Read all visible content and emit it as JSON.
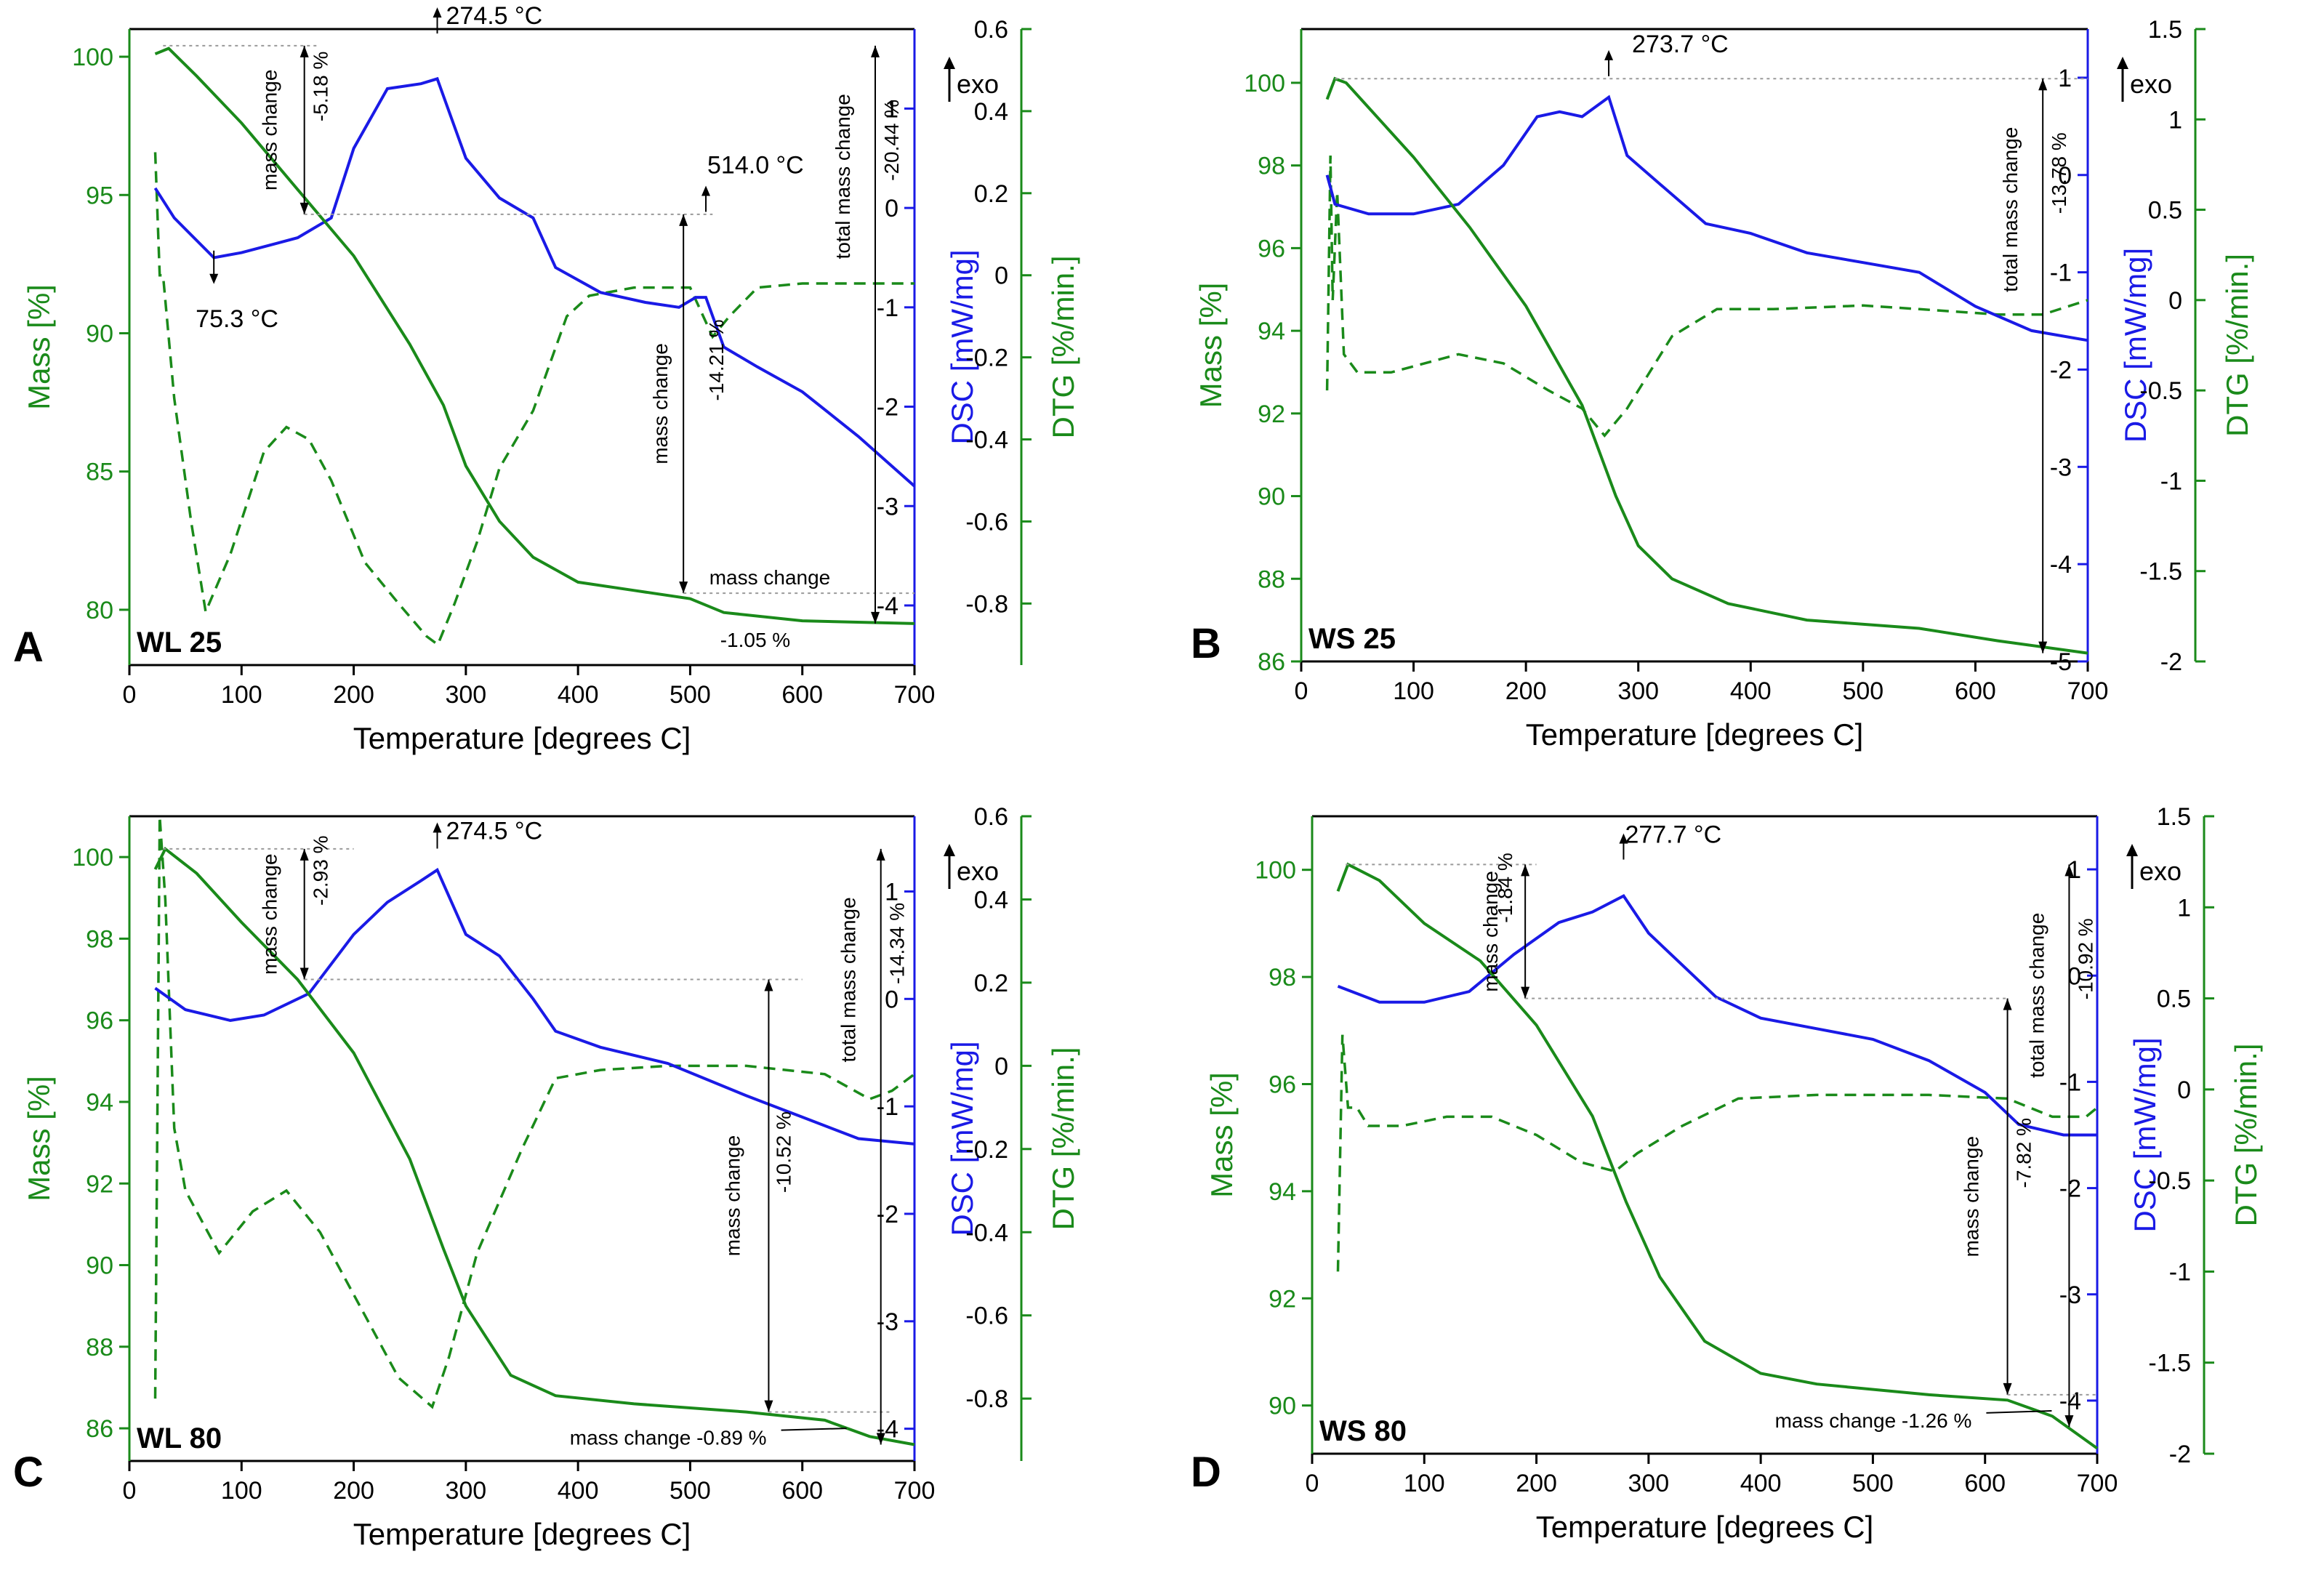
{
  "figure": {
    "type": "TGA/DSC/DTG thermal analysis",
    "panels_count": 4
  },
  "colors": {
    "mass": "#1a8a1a",
    "dsc": "#1a1ae6",
    "dtg": "#1a8a1a",
    "axis": "#000000",
    "guide": "#999999"
  },
  "common": {
    "exo": "exo",
    "xlabel": "Temperature [degrees C]",
    "y_mass_label": "Mass [%]",
    "y_dsc_label": "DSC [mW/mg]",
    "y_dtg_label": "DTG [%/min.]"
  },
  "chart_data": [
    {
      "panel": "A",
      "sample": "WL 25",
      "type": "line",
      "xlim": [
        0,
        700
      ],
      "xticks": [
        0,
        100,
        200,
        300,
        400,
        500,
        600,
        700
      ],
      "mass_lim": [
        78,
        101
      ],
      "mass_ticks": [
        80,
        85,
        90,
        95,
        100
      ],
      "dsc_lim": [
        -4.6,
        1.8
      ],
      "dsc_ticks": [
        -4,
        -3,
        -2,
        -1,
        0,
        1
      ],
      "dtg_lim": [
        -0.95,
        0.6
      ],
      "dtg_ticks": [
        -0.8,
        -0.6,
        -0.4,
        -0.2,
        0,
        0.2,
        0.4,
        0.6
      ],
      "mass_curve": [
        [
          23,
          100.1
        ],
        [
          35,
          100.3
        ],
        [
          60,
          99.3
        ],
        [
          100,
          97.6
        ],
        [
          150,
          95.2
        ],
        [
          200,
          92.8
        ],
        [
          250,
          89.6
        ],
        [
          280,
          87.4
        ],
        [
          300,
          85.2
        ],
        [
          330,
          83.2
        ],
        [
          360,
          81.9
        ],
        [
          400,
          81.0
        ],
        [
          450,
          80.7
        ],
        [
          500,
          80.4
        ],
        [
          530,
          79.9
        ],
        [
          600,
          79.6
        ],
        [
          700,
          79.5
        ]
      ],
      "dsc_curve": [
        [
          23,
          0.2
        ],
        [
          40,
          -0.1
        ],
        [
          75.3,
          -0.5
        ],
        [
          100,
          -0.45
        ],
        [
          150,
          -0.3
        ],
        [
          180,
          -0.1
        ],
        [
          200,
          0.6
        ],
        [
          230,
          1.2
        ],
        [
          260,
          1.25
        ],
        [
          274.5,
          1.3
        ],
        [
          300,
          0.5
        ],
        [
          330,
          0.1
        ],
        [
          360,
          -0.1
        ],
        [
          380,
          -0.6
        ],
        [
          420,
          -0.85
        ],
        [
          460,
          -0.95
        ],
        [
          490,
          -1.0
        ],
        [
          505,
          -0.9
        ],
        [
          514.0,
          -0.9
        ],
        [
          530,
          -1.4
        ],
        [
          560,
          -1.6
        ],
        [
          600,
          -1.85
        ],
        [
          650,
          -2.3
        ],
        [
          700,
          -2.8
        ]
      ],
      "dtg_curve": [
        [
          23,
          0.3
        ],
        [
          27,
          0.0
        ],
        [
          30,
          0.0
        ],
        [
          40,
          -0.3
        ],
        [
          55,
          -0.6
        ],
        [
          68,
          -0.82
        ],
        [
          90,
          -0.68
        ],
        [
          120,
          -0.43
        ],
        [
          140,
          -0.37
        ],
        [
          160,
          -0.4
        ],
        [
          180,
          -0.5
        ],
        [
          210,
          -0.7
        ],
        [
          240,
          -0.8
        ],
        [
          265,
          -0.88
        ],
        [
          275,
          -0.9
        ],
        [
          290,
          -0.8
        ],
        [
          310,
          -0.65
        ],
        [
          330,
          -0.47
        ],
        [
          360,
          -0.33
        ],
        [
          390,
          -0.1
        ],
        [
          410,
          -0.05
        ],
        [
          450,
          -0.03
        ],
        [
          500,
          -0.03
        ],
        [
          520,
          -0.15
        ],
        [
          535,
          -0.1
        ],
        [
          560,
          -0.03
        ],
        [
          600,
          -0.02
        ],
        [
          700,
          -0.02
        ]
      ],
      "annotations": {
        "peak_labels": [
          "274.5 °C",
          "514.0 °C",
          "75.3 °C"
        ],
        "mass_change_labels": [
          "mass change",
          "mass change",
          "mass change"
        ],
        "mass_change_values": [
          "-5.18 %",
          "-14.21 %",
          "-1.05 %"
        ],
        "total_label": "total mass change",
        "total_value": "-20.44 %"
      }
    },
    {
      "panel": "B",
      "sample": "WS 25",
      "type": "line",
      "xlim": [
        0,
        700
      ],
      "xticks": [
        0,
        100,
        200,
        300,
        400,
        500,
        600,
        700
      ],
      "mass_lim": [
        86,
        101.3
      ],
      "mass_ticks": [
        86,
        88,
        90,
        92,
        94,
        96,
        98,
        100
      ],
      "dsc_lim": [
        -5,
        1.5
      ],
      "dsc_ticks": [
        -5,
        -4,
        -3,
        -2,
        -1,
        0,
        1
      ],
      "dtg_lim": [
        -2,
        1.5
      ],
      "dtg_ticks": [
        -2,
        -1.5,
        -1,
        -0.5,
        0,
        0.5,
        1,
        1.5
      ],
      "mass_curve": [
        [
          23,
          99.6
        ],
        [
          30,
          100.1
        ],
        [
          40,
          100.0
        ],
        [
          60,
          99.4
        ],
        [
          100,
          98.2
        ],
        [
          150,
          96.5
        ],
        [
          200,
          94.6
        ],
        [
          250,
          92.2
        ],
        [
          280,
          90.0
        ],
        [
          300,
          88.8
        ],
        [
          330,
          88.0
        ],
        [
          380,
          87.4
        ],
        [
          450,
          87.0
        ],
        [
          550,
          86.8
        ],
        [
          620,
          86.5
        ],
        [
          700,
          86.2
        ]
      ],
      "dsc_curve": [
        [
          23,
          0.0
        ],
        [
          30,
          -0.3
        ],
        [
          60,
          -0.4
        ],
        [
          100,
          -0.4
        ],
        [
          140,
          -0.3
        ],
        [
          180,
          0.1
        ],
        [
          210,
          0.6
        ],
        [
          230,
          0.65
        ],
        [
          250,
          0.6
        ],
        [
          273.7,
          0.8
        ],
        [
          290,
          0.2
        ],
        [
          320,
          -0.1
        ],
        [
          360,
          -0.5
        ],
        [
          400,
          -0.6
        ],
        [
          450,
          -0.8
        ],
        [
          500,
          -0.9
        ],
        [
          550,
          -1.0
        ],
        [
          600,
          -1.35
        ],
        [
          650,
          -1.6
        ],
        [
          700,
          -1.7
        ]
      ],
      "dtg_curve": [
        [
          23,
          -0.5
        ],
        [
          26,
          0.8
        ],
        [
          28,
          0.0
        ],
        [
          32,
          0.6
        ],
        [
          38,
          -0.3
        ],
        [
          50,
          -0.4
        ],
        [
          80,
          -0.4
        ],
        [
          140,
          -0.3
        ],
        [
          180,
          -0.35
        ],
        [
          220,
          -0.5
        ],
        [
          250,
          -0.6
        ],
        [
          270,
          -0.75
        ],
        [
          290,
          -0.6
        ],
        [
          330,
          -0.2
        ],
        [
          370,
          -0.05
        ],
        [
          420,
          -0.05
        ],
        [
          500,
          -0.03
        ],
        [
          550,
          -0.05
        ],
        [
          620,
          -0.08
        ],
        [
          660,
          -0.08
        ],
        [
          700,
          0.0
        ]
      ],
      "annotations": {
        "peak_labels": [
          "273.7 °C"
        ],
        "mass_change_labels": [],
        "mass_change_values": [],
        "total_label": "total mass change",
        "total_value": "-13.78 %"
      }
    },
    {
      "panel": "C",
      "sample": "WL 80",
      "type": "line",
      "xlim": [
        0,
        700
      ],
      "xticks": [
        0,
        100,
        200,
        300,
        400,
        500,
        600,
        700
      ],
      "mass_lim": [
        85.2,
        101
      ],
      "mass_ticks": [
        86,
        88,
        90,
        92,
        94,
        96,
        98,
        100
      ],
      "dsc_lim": [
        -4.3,
        1.7
      ],
      "dsc_ticks": [
        -4,
        -3,
        -2,
        -1,
        0,
        1
      ],
      "dtg_lim": [
        -0.95,
        0.6
      ],
      "dtg_ticks": [
        -0.8,
        -0.6,
        -0.4,
        -0.2,
        0,
        0.2,
        0.4,
        0.6
      ],
      "mass_curve": [
        [
          23,
          99.7
        ],
        [
          32,
          100.2
        ],
        [
          60,
          99.6
        ],
        [
          100,
          98.4
        ],
        [
          150,
          97.0
        ],
        [
          200,
          95.2
        ],
        [
          250,
          92.6
        ],
        [
          280,
          90.4
        ],
        [
          300,
          89.0
        ],
        [
          340,
          87.3
        ],
        [
          380,
          86.8
        ],
        [
          450,
          86.6
        ],
        [
          550,
          86.4
        ],
        [
          620,
          86.2
        ],
        [
          660,
          85.8
        ],
        [
          700,
          85.6
        ]
      ],
      "dsc_curve": [
        [
          23,
          0.1
        ],
        [
          50,
          -0.1
        ],
        [
          90,
          -0.2
        ],
        [
          120,
          -0.15
        ],
        [
          160,
          0.05
        ],
        [
          200,
          0.6
        ],
        [
          230,
          0.9
        ],
        [
          260,
          1.1
        ],
        [
          274.5,
          1.2
        ],
        [
          300,
          0.6
        ],
        [
          330,
          0.4
        ],
        [
          360,
          0.0
        ],
        [
          380,
          -0.3
        ],
        [
          420,
          -0.45
        ],
        [
          480,
          -0.6
        ],
        [
          550,
          -0.9
        ],
        [
          600,
          -1.1
        ],
        [
          650,
          -1.3
        ],
        [
          700,
          -1.35
        ]
      ],
      "dtg_curve": [
        [
          23,
          -0.8
        ],
        [
          27,
          0.6
        ],
        [
          32,
          0.4
        ],
        [
          40,
          -0.15
        ],
        [
          50,
          -0.3
        ],
        [
          80,
          -0.45
        ],
        [
          110,
          -0.35
        ],
        [
          140,
          -0.3
        ],
        [
          170,
          -0.4
        ],
        [
          200,
          -0.55
        ],
        [
          240,
          -0.75
        ],
        [
          270,
          -0.82
        ],
        [
          285,
          -0.7
        ],
        [
          310,
          -0.45
        ],
        [
          350,
          -0.2
        ],
        [
          380,
          -0.03
        ],
        [
          420,
          -0.01
        ],
        [
          480,
          0.0
        ],
        [
          550,
          0.0
        ],
        [
          620,
          -0.02
        ],
        [
          660,
          -0.08
        ],
        [
          680,
          -0.06
        ],
        [
          700,
          -0.02
        ]
      ],
      "annotations": {
        "peak_labels": [
          "274.5 °C"
        ],
        "mass_change_labels": [
          "mass change",
          "mass change",
          "mass change -0.89 %"
        ],
        "mass_change_values": [
          "-2.93 %",
          "-10.52 %"
        ],
        "total_label": "total mass change",
        "total_value": "-14.34 %"
      }
    },
    {
      "panel": "D",
      "sample": "WS 80",
      "type": "line",
      "xlim": [
        0,
        700
      ],
      "xticks": [
        0,
        100,
        200,
        300,
        400,
        500,
        600,
        700
      ],
      "mass_lim": [
        89.1,
        101
      ],
      "mass_ticks": [
        90,
        92,
        94,
        96,
        98,
        100
      ],
      "dsc_lim": [
        -4.5,
        1.5
      ],
      "dsc_ticks": [
        -4,
        -3,
        -2,
        -1,
        0,
        1
      ],
      "dtg_lim": [
        -2,
        1.5
      ],
      "dtg_ticks": [
        -2,
        -1.5,
        -1,
        -0.5,
        0,
        0.5,
        1,
        1.5
      ],
      "mass_curve": [
        [
          23,
          99.6
        ],
        [
          32,
          100.1
        ],
        [
          60,
          99.8
        ],
        [
          100,
          99.0
        ],
        [
          150,
          98.3
        ],
        [
          200,
          97.1
        ],
        [
          250,
          95.4
        ],
        [
          280,
          93.8
        ],
        [
          310,
          92.4
        ],
        [
          350,
          91.2
        ],
        [
          400,
          90.6
        ],
        [
          450,
          90.4
        ],
        [
          550,
          90.2
        ],
        [
          620,
          90.1
        ],
        [
          660,
          89.8
        ],
        [
          700,
          89.2
        ]
      ],
      "dsc_curve": [
        [
          23,
          -0.1
        ],
        [
          60,
          -0.25
        ],
        [
          100,
          -0.25
        ],
        [
          140,
          -0.15
        ],
        [
          180,
          0.2
        ],
        [
          220,
          0.5
        ],
        [
          250,
          0.6
        ],
        [
          277.7,
          0.75
        ],
        [
          300,
          0.4
        ],
        [
          330,
          0.1
        ],
        [
          360,
          -0.2
        ],
        [
          400,
          -0.4
        ],
        [
          450,
          -0.5
        ],
        [
          500,
          -0.6
        ],
        [
          550,
          -0.8
        ],
        [
          600,
          -1.1
        ],
        [
          630,
          -1.4
        ],
        [
          670,
          -1.5
        ],
        [
          700,
          -1.5
        ]
      ],
      "dtg_curve": [
        [
          23,
          -1.0
        ],
        [
          27,
          0.3
        ],
        [
          32,
          -0.1
        ],
        [
          40,
          -0.1
        ],
        [
          50,
          -0.2
        ],
        [
          80,
          -0.2
        ],
        [
          120,
          -0.15
        ],
        [
          160,
          -0.15
        ],
        [
          200,
          -0.25
        ],
        [
          240,
          -0.4
        ],
        [
          270,
          -0.45
        ],
        [
          290,
          -0.35
        ],
        [
          330,
          -0.2
        ],
        [
          380,
          -0.05
        ],
        [
          450,
          -0.03
        ],
        [
          550,
          -0.03
        ],
        [
          620,
          -0.05
        ],
        [
          660,
          -0.15
        ],
        [
          690,
          -0.15
        ],
        [
          700,
          -0.1
        ]
      ],
      "annotations": {
        "peak_labels": [
          "277.7 °C"
        ],
        "mass_change_labels": [
          "mass change",
          "mass change",
          "mass change -1.26 %"
        ],
        "mass_change_values": [
          "-1.84 %",
          "-7.82 %"
        ],
        "total_label": "total mass change",
        "total_value": "-10.92 %"
      }
    }
  ]
}
